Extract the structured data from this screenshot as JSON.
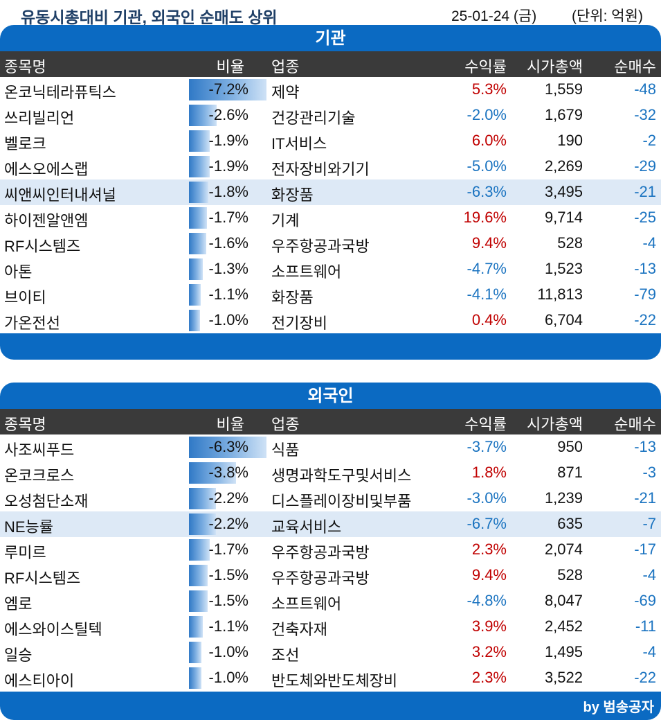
{
  "header": {
    "title": "유동시총대비 기관, 외국인 순매도 상위",
    "date": "25-01-24 (금)",
    "unit": "(단위: 억원)"
  },
  "columns": {
    "name": "종목명",
    "ratio": "비율",
    "sector": "업종",
    "return": "수익률",
    "cap": "시가총액",
    "net": "순매수"
  },
  "sections": [
    {
      "title": "기관",
      "rows": [
        {
          "name": "온코닉테라퓨틱스",
          "ratio": "-7.2%",
          "ratio_value": -7.2,
          "sector": "제약",
          "return": "5.3%",
          "cap": "1,559",
          "net": "-48"
        },
        {
          "name": "쓰리빌리언",
          "ratio": "-2.6%",
          "ratio_value": -2.6,
          "sector": "건강관리기술",
          "return": "-2.0%",
          "cap": "1,679",
          "net": "-32"
        },
        {
          "name": "벨로크",
          "ratio": "-1.9%",
          "ratio_value": -1.9,
          "sector": "IT서비스",
          "return": "6.0%",
          "cap": "190",
          "net": "-2"
        },
        {
          "name": "에스오에스랩",
          "ratio": "-1.9%",
          "ratio_value": -1.9,
          "sector": "전자장비와기기",
          "return": "-5.0%",
          "cap": "2,269",
          "net": "-29"
        },
        {
          "name": "씨앤씨인터내셔널",
          "ratio": "-1.8%",
          "ratio_value": -1.8,
          "sector": "화장품",
          "return": "-6.3%",
          "cap": "3,495",
          "net": "-21",
          "highlight": true
        },
        {
          "name": "하이젠알앤엠",
          "ratio": "-1.7%",
          "ratio_value": -1.7,
          "sector": "기계",
          "return": "19.6%",
          "cap": "9,714",
          "net": "-25"
        },
        {
          "name": "RF시스템즈",
          "ratio": "-1.6%",
          "ratio_value": -1.6,
          "sector": "우주항공과국방",
          "return": "9.4%",
          "cap": "528",
          "net": "-4"
        },
        {
          "name": "아톤",
          "ratio": "-1.3%",
          "ratio_value": -1.3,
          "sector": "소프트웨어",
          "return": "-4.7%",
          "cap": "1,523",
          "net": "-13"
        },
        {
          "name": "브이티",
          "ratio": "-1.1%",
          "ratio_value": -1.1,
          "sector": "화장품",
          "return": "-4.1%",
          "cap": "11,813",
          "net": "-79"
        },
        {
          "name": "가온전선",
          "ratio": "-1.0%",
          "ratio_value": -1.0,
          "sector": "전기장비",
          "return": "0.4%",
          "cap": "6,704",
          "net": "-22"
        }
      ]
    },
    {
      "title": "외국인",
      "rows": [
        {
          "name": "사조씨푸드",
          "ratio": "-6.3%",
          "ratio_value": -6.3,
          "sector": "식품",
          "return": "-3.7%",
          "cap": "950",
          "net": "-13"
        },
        {
          "name": "온코크로스",
          "ratio": "-3.8%",
          "ratio_value": -3.8,
          "sector": "생명과학도구및서비스",
          "return": "1.8%",
          "cap": "871",
          "net": "-3"
        },
        {
          "name": "오성첨단소재",
          "ratio": "-2.2%",
          "ratio_value": -2.2,
          "sector": "디스플레이장비및부품",
          "return": "-3.0%",
          "cap": "1,239",
          "net": "-21"
        },
        {
          "name": "NE능률",
          "ratio": "-2.2%",
          "ratio_value": -2.2,
          "sector": "교육서비스",
          "return": "-6.7%",
          "cap": "635",
          "net": "-7",
          "highlight": true
        },
        {
          "name": "루미르",
          "ratio": "-1.7%",
          "ratio_value": -1.7,
          "sector": "우주항공과국방",
          "return": "2.3%",
          "cap": "2,074",
          "net": "-17"
        },
        {
          "name": "RF시스템즈",
          "ratio": "-1.5%",
          "ratio_value": -1.5,
          "sector": "우주항공과국방",
          "return": "9.4%",
          "cap": "528",
          "net": "-4"
        },
        {
          "name": "엠로",
          "ratio": "-1.5%",
          "ratio_value": -1.5,
          "sector": "소프트웨어",
          "return": "-4.8%",
          "cap": "8,047",
          "net": "-69"
        },
        {
          "name": "에스와이스틸텍",
          "ratio": "-1.1%",
          "ratio_value": -1.1,
          "sector": "건축자재",
          "return": "3.9%",
          "cap": "2,452",
          "net": "-11"
        },
        {
          "name": "일승",
          "ratio": "-1.0%",
          "ratio_value": -1.0,
          "sector": "조선",
          "return": "3.2%",
          "cap": "1,495",
          "net": "-4"
        },
        {
          "name": "에스티아이",
          "ratio": "-1.0%",
          "ratio_value": -1.0,
          "sector": "반도체와반도체장비",
          "return": "2.3%",
          "cap": "3,522",
          "net": "-22"
        }
      ]
    }
  ],
  "footer": {
    "credit": "by 범송공자"
  },
  "colors": {
    "accent": "#0b6ac2",
    "header_bg": "#3a3a3a",
    "positive": "#c00000",
    "negative": "#1a73c0",
    "highlight_row": "#dde9f6"
  }
}
